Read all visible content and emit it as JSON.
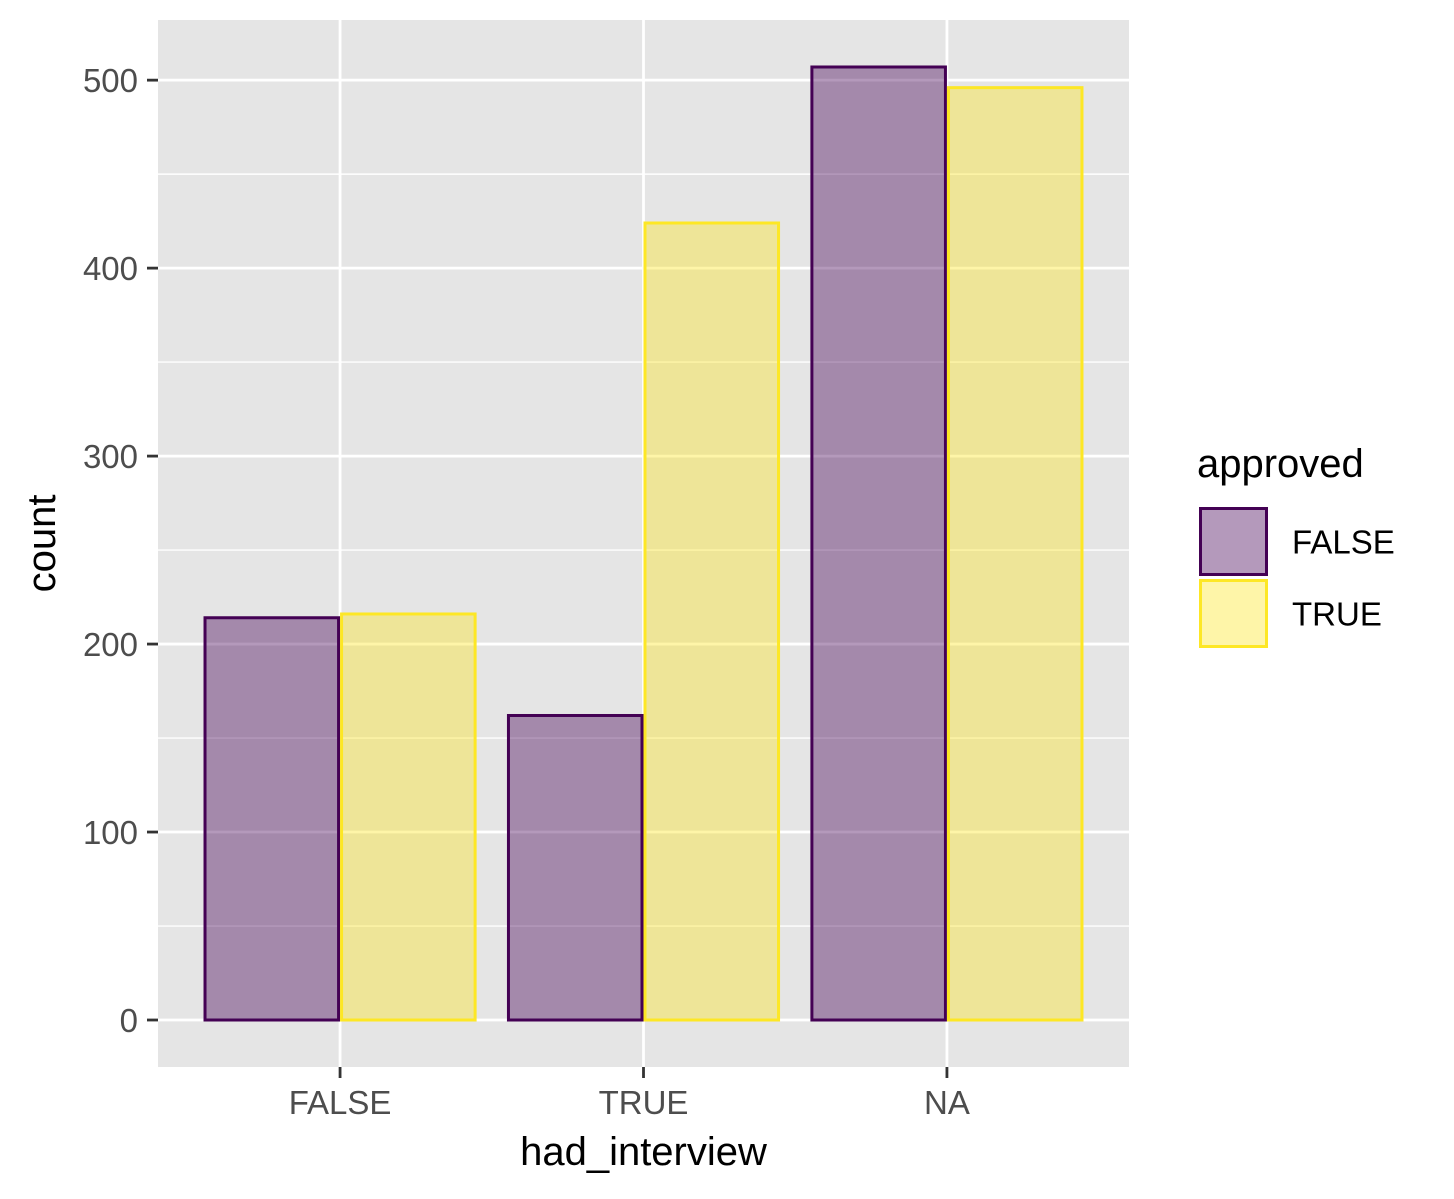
{
  "chart_data": {
    "type": "bar",
    "title": "",
    "xlabel": "had_interview",
    "ylabel": "count",
    "categories": [
      "FALSE",
      "TRUE",
      "NA"
    ],
    "series": [
      {
        "name": "FALSE",
        "values": [
          214,
          162,
          507
        ],
        "fill": "#440154",
        "fill_opacity": 0.4,
        "stroke": "#440154"
      },
      {
        "name": "TRUE",
        "values": [
          216,
          424,
          496
        ],
        "fill": "#FDE725",
        "fill_opacity": 0.4,
        "stroke": "#FDE725"
      }
    ],
    "ylim": [
      -25,
      532
    ],
    "yticks": [
      0,
      100,
      200,
      300,
      400,
      500
    ],
    "grid": true,
    "legend": {
      "title": "approved",
      "position": "right"
    },
    "panel_background": "#e5e5e5",
    "grid_color": "#ffffff"
  }
}
